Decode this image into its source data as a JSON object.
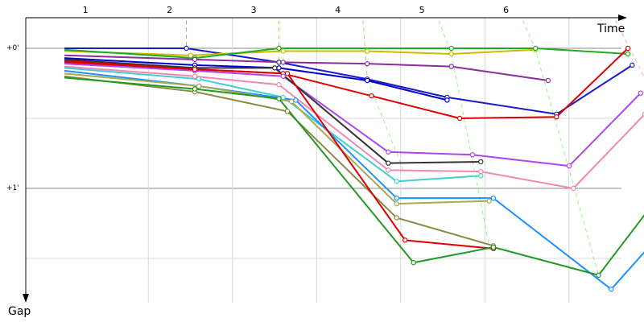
{
  "chart_data": {
    "type": "line",
    "title": "",
    "xlabel": "Time",
    "ylabel": "Gap",
    "x_tick_labels": [
      "1",
      "2",
      "3",
      "4",
      "5",
      "6"
    ],
    "y_tick_labels": [
      "+0'",
      "+1'"
    ],
    "series": [
      {
        "color": "#1a1acc",
        "points": [
          [
            0,
            0.0
          ],
          [
            1.45,
            0.0
          ],
          [
            2.55,
            0.1
          ],
          [
            3.6,
            0.22
          ],
          [
            4.55,
            0.35
          ],
          [
            5.85,
            0.47
          ],
          [
            6.75,
            0.12
          ]
        ]
      },
      {
        "color": "#ccbb00",
        "points": [
          [
            0,
            0.02
          ],
          [
            1.5,
            0.05
          ],
          [
            2.6,
            0.02
          ],
          [
            3.6,
            0.02
          ],
          [
            4.6,
            0.04
          ],
          [
            5.6,
            0.01
          ]
        ]
      },
      {
        "color": "#22aa22",
        "points": [
          [
            0,
            0.01
          ],
          [
            1.55,
            0.07
          ],
          [
            2.55,
            0.0
          ],
          [
            4.6,
            0.0
          ],
          [
            5.6,
            0.0
          ],
          [
            6.7,
            0.04
          ]
        ]
      },
      {
        "color": "#8b2d9b",
        "points": [
          [
            0,
            0.05
          ],
          [
            1.55,
            0.08
          ],
          [
            2.6,
            0.1
          ],
          [
            3.6,
            0.11
          ],
          [
            4.6,
            0.13
          ],
          [
            5.75,
            0.23
          ]
        ]
      },
      {
        "color": "#e00000",
        "points": [
          [
            0,
            0.1
          ],
          [
            1.55,
            0.15
          ],
          [
            2.6,
            0.18
          ],
          [
            3.65,
            0.34
          ],
          [
            4.7,
            0.5
          ],
          [
            5.85,
            0.49
          ],
          [
            6.7,
            0.0
          ]
        ]
      },
      {
        "color": "#0000cc",
        "points": [
          [
            0,
            0.07
          ],
          [
            1.55,
            0.12
          ],
          [
            2.55,
            0.14
          ],
          [
            3.6,
            0.23
          ],
          [
            4.55,
            0.37
          ]
        ]
      },
      {
        "color": "#b044f0",
        "points": [
          [
            0,
            0.11
          ],
          [
            1.55,
            0.16
          ],
          [
            2.6,
            0.2
          ],
          [
            3.85,
            0.74
          ],
          [
            4.85,
            0.76
          ],
          [
            6.0,
            0.84
          ],
          [
            6.85,
            0.32
          ]
        ]
      },
      {
        "color": "#333333",
        "points": [
          [
            0,
            0.08
          ],
          [
            1.55,
            0.14
          ],
          [
            2.5,
            0.14
          ],
          [
            3.85,
            0.82
          ],
          [
            4.95,
            0.81
          ]
        ]
      },
      {
        "color": "#f088b0",
        "points": [
          [
            0,
            0.13
          ],
          [
            1.55,
            0.2
          ],
          [
            2.55,
            0.26
          ],
          [
            3.85,
            0.87
          ],
          [
            4.95,
            0.88
          ],
          [
            6.05,
            1.0
          ],
          [
            6.9,
            0.47
          ]
        ]
      },
      {
        "color": "#40d0d0",
        "points": [
          [
            0,
            0.14
          ],
          [
            1.6,
            0.22
          ],
          [
            2.6,
            0.35
          ],
          [
            3.95,
            0.95
          ],
          [
            4.95,
            0.91
          ]
        ]
      },
      {
        "color": "#1e90ff",
        "points": [
          [
            0,
            0.16
          ],
          [
            1.6,
            0.27
          ],
          [
            2.75,
            0.37
          ],
          [
            3.95,
            1.07
          ],
          [
            5.1,
            1.07
          ],
          [
            6.5,
            1.72
          ],
          [
            7.2,
            1.25
          ]
        ]
      },
      {
        "color": "#aaaa55",
        "points": [
          [
            0,
            0.18
          ],
          [
            1.6,
            0.27
          ],
          [
            2.7,
            0.38
          ],
          [
            3.95,
            1.11
          ],
          [
            5.05,
            1.09
          ]
        ]
      },
      {
        "color": "#8a8a44",
        "points": [
          [
            0,
            0.2
          ],
          [
            1.55,
            0.31
          ],
          [
            2.65,
            0.45
          ],
          [
            3.95,
            1.21
          ],
          [
            5.1,
            1.41
          ]
        ]
      },
      {
        "color": "#dd0000",
        "points": [
          [
            0,
            0.09
          ],
          [
            1.55,
            0.15
          ],
          [
            2.65,
            0.18
          ],
          [
            4.05,
            1.37
          ],
          [
            5.1,
            1.43
          ]
        ]
      },
      {
        "color": "#229922",
        "points": [
          [
            0,
            0.21
          ],
          [
            1.55,
            0.29
          ],
          [
            2.55,
            0.36
          ],
          [
            4.15,
            1.53
          ],
          [
            5.1,
            1.42
          ],
          [
            6.35,
            1.62
          ],
          [
            7.15,
            0.99
          ]
        ]
      }
    ],
    "dashed_guides": [
      {
        "color": "#9999ff",
        "points": [
          [
            1.45,
            -0.2
          ],
          [
            1.45,
            0.0
          ]
        ]
      },
      {
        "color": "#cccc66",
        "points": [
          [
            2.55,
            -0.2
          ],
          [
            2.55,
            0.1
          ]
        ]
      },
      {
        "color": "#cccc66",
        "points": [
          [
            3.55,
            -0.2
          ],
          [
            3.6,
            0.22
          ]
        ]
      },
      {
        "color": "#99ee99",
        "points": [
          [
            3.6,
            0.22
          ],
          [
            4.05,
            0.9
          ]
        ]
      },
      {
        "color": "#99ee99",
        "points": [
          [
            4.45,
            -0.2
          ],
          [
            4.6,
            0.04
          ],
          [
            5.05,
            1.41
          ]
        ]
      },
      {
        "color": "#99ee99",
        "points": [
          [
            5.45,
            -0.2
          ],
          [
            5.6,
            0.01
          ],
          [
            6.35,
            1.62
          ]
        ]
      },
      {
        "color": "#ffaaaa",
        "points": [
          [
            6.55,
            -0.2
          ],
          [
            7.1,
            0.45
          ],
          [
            7.3,
            0.99
          ]
        ]
      }
    ]
  }
}
